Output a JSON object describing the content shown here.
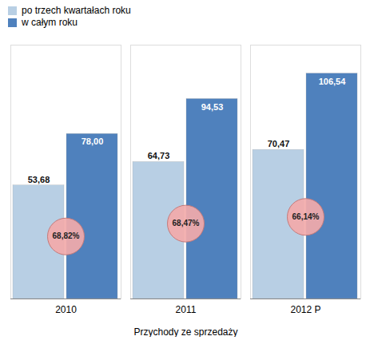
{
  "chart_data": {
    "type": "bar",
    "categories": [
      "2010",
      "2011",
      "2012 P"
    ],
    "series": [
      {
        "name": "po trzech kwartałach roku",
        "color": "#b8cfe4",
        "values": [
          53.68,
          64.73,
          70.47
        ],
        "value_labels": [
          "53,68",
          "64,73",
          "70,47"
        ]
      },
      {
        "name": "w całym roku",
        "color": "#4f81bd",
        "values": [
          78.0,
          94.53,
          106.54
        ],
        "value_labels": [
          "78,00",
          "94,53",
          "106,54"
        ]
      }
    ],
    "annotations": [
      {
        "category": "2010",
        "text": "68,82%",
        "color": "#f2aaaa"
      },
      {
        "category": "2011",
        "text": "68,47%",
        "color": "#f2aaaa"
      },
      {
        "category": "2012 P",
        "text": "66,14%",
        "color": "#f2aaaa"
      }
    ],
    "xlabel": "Przychody ze sprzedaży",
    "ylim": [
      0,
      120
    ],
    "grid": false,
    "legend": "upper left",
    "data_labels": true,
    "tick_labels": "x"
  }
}
